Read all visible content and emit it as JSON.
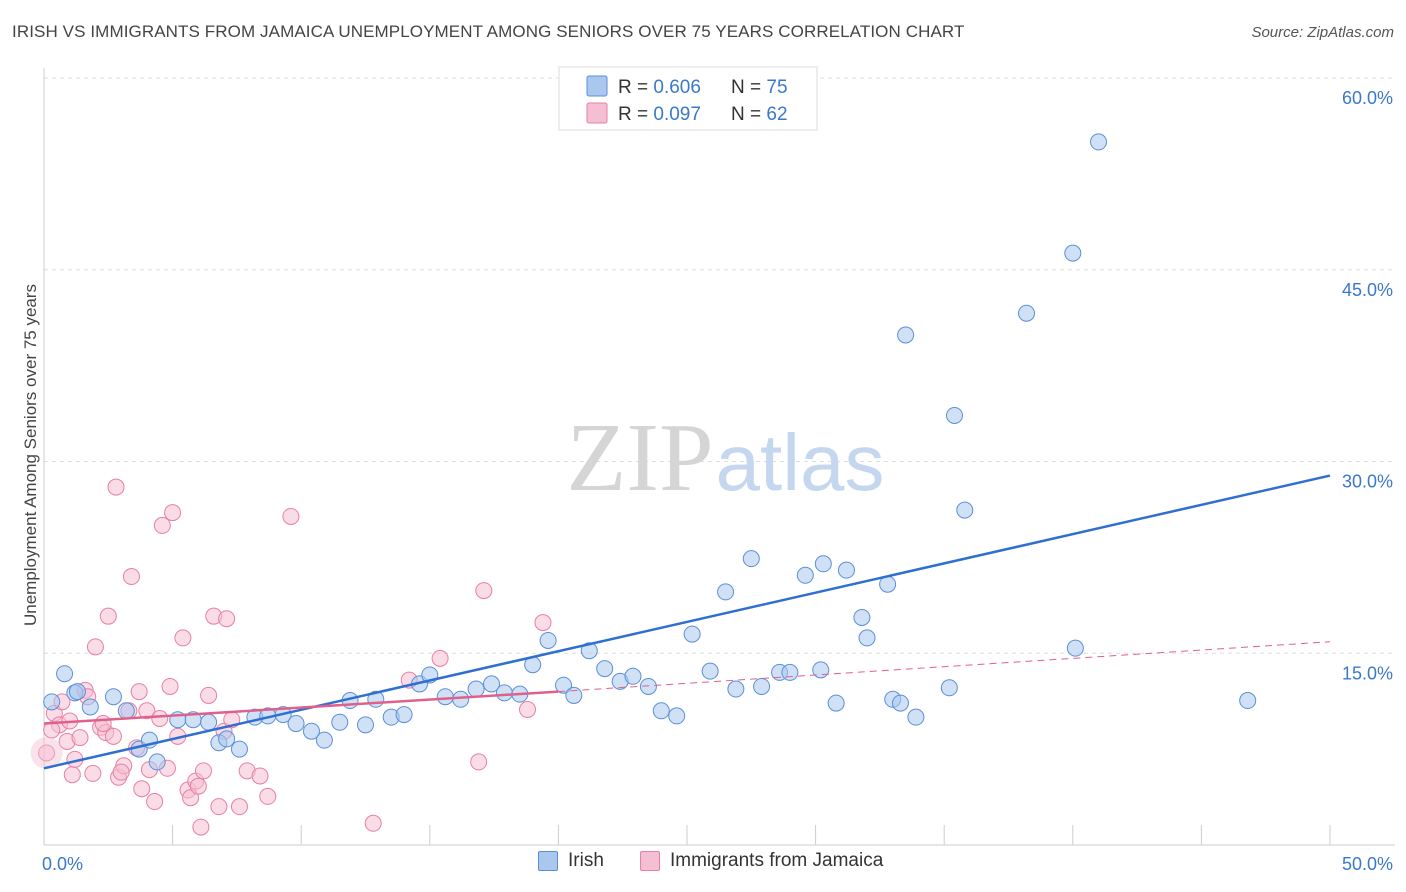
{
  "header": {
    "title": "IRISH VS IMMIGRANTS FROM JAMAICA UNEMPLOYMENT AMONG SENIORS OVER 75 YEARS CORRELATION CHART",
    "source": "Source: ZipAtlas.com"
  },
  "watermark": {
    "zip": "ZIP",
    "atlas": "atlas"
  },
  "colors": {
    "irish": "#5b8fd8",
    "irish_fill": "#aac8ee",
    "irish_line": "#2e6fd0",
    "jamaica": "#e97fa3",
    "jamaica_fill": "#f4bfd2",
    "jamaica_line": "#e0608c",
    "axis_text": "#3a78cc",
    "grid": "#dddddd"
  },
  "legend": {
    "irish": {
      "r_label": "R = ",
      "r_value": "0.606",
      "n_label": "N = ",
      "n_value": "75"
    },
    "jamaica": {
      "r_label": "R = ",
      "r_value": "0.097",
      "n_label": "N = ",
      "n_value": "62"
    }
  },
  "chart_data": {
    "type": "scatter",
    "title": "IRISH VS IMMIGRANTS FROM JAMAICA UNEMPLOYMENT AMONG SENIORS OVER 75 YEARS CORRELATION CHART",
    "xlabel": "",
    "ylabel": "Unemployment Among Seniors over 75 years",
    "xlim": [
      0,
      50
    ],
    "ylim": [
      0,
      60
    ],
    "x_tick_labels": [
      "0.0%",
      "50.0%"
    ],
    "y_ticks": [
      15,
      30,
      45,
      60
    ],
    "y_tick_labels": [
      "15.0%",
      "30.0%",
      "45.0%",
      "60.0%"
    ],
    "grid": true,
    "series": [
      {
        "name": "Irish",
        "points": [
          [
            0.3,
            11.2
          ],
          [
            0.8,
            13.4
          ],
          [
            1.2,
            11.9
          ],
          [
            1.8,
            10.8
          ],
          [
            2.7,
            11.6
          ],
          [
            3.2,
            10.5
          ],
          [
            3.7,
            7.5
          ],
          [
            4.4,
            6.5
          ],
          [
            5.2,
            9.8
          ],
          [
            5.8,
            9.8
          ],
          [
            6.4,
            9.6
          ],
          [
            6.8,
            8.0
          ],
          [
            7.1,
            8.3
          ],
          [
            7.6,
            7.5
          ],
          [
            8.2,
            10.0
          ],
          [
            8.7,
            10.1
          ],
          [
            9.3,
            10.2
          ],
          [
            9.8,
            9.5
          ],
          [
            10.4,
            8.9
          ],
          [
            10.9,
            8.2
          ],
          [
            11.5,
            9.6
          ],
          [
            11.9,
            11.3
          ],
          [
            12.5,
            9.4
          ],
          [
            12.9,
            11.4
          ],
          [
            13.5,
            10.0
          ],
          [
            14.0,
            10.2
          ],
          [
            14.6,
            12.6
          ],
          [
            15.0,
            13.3
          ],
          [
            15.6,
            11.6
          ],
          [
            16.2,
            11.4
          ],
          [
            16.8,
            12.2
          ],
          [
            17.4,
            12.6
          ],
          [
            17.9,
            11.9
          ],
          [
            18.5,
            11.8
          ],
          [
            19.0,
            14.1
          ],
          [
            19.6,
            16.0
          ],
          [
            20.2,
            12.5
          ],
          [
            20.6,
            11.7
          ],
          [
            21.2,
            15.2
          ],
          [
            21.8,
            13.8
          ],
          [
            22.4,
            12.8
          ],
          [
            22.9,
            13.2
          ],
          [
            23.5,
            12.4
          ],
          [
            24.0,
            10.5
          ],
          [
            24.6,
            10.1
          ],
          [
            25.2,
            16.5
          ],
          [
            25.9,
            13.6
          ],
          [
            26.5,
            19.8
          ],
          [
            26.9,
            12.2
          ],
          [
            27.5,
            22.4
          ],
          [
            27.9,
            12.4
          ],
          [
            28.6,
            13.5
          ],
          [
            29.0,
            13.5
          ],
          [
            29.6,
            21.1
          ],
          [
            30.2,
            13.7
          ],
          [
            30.3,
            22.0
          ],
          [
            30.8,
            11.1
          ],
          [
            31.2,
            21.5
          ],
          [
            31.8,
            17.8
          ],
          [
            32.0,
            16.2
          ],
          [
            32.8,
            20.4
          ],
          [
            33.0,
            11.4
          ],
          [
            33.3,
            11.1
          ],
          [
            33.5,
            39.9
          ],
          [
            33.9,
            10.0
          ],
          [
            35.2,
            12.3
          ],
          [
            35.4,
            33.6
          ],
          [
            35.8,
            26.2
          ],
          [
            38.2,
            41.6
          ],
          [
            40.0,
            46.3
          ],
          [
            40.1,
            15.4
          ],
          [
            41.0,
            55.0
          ],
          [
            46.8,
            11.3
          ],
          [
            4.1,
            8.2
          ],
          [
            1.3,
            12.0
          ]
        ]
      },
      {
        "name": "Immigrants from Jamaica",
        "points": [
          [
            0.1,
            7.2
          ],
          [
            0.4,
            10.3
          ],
          [
            0.6,
            9.4
          ],
          [
            0.7,
            11.2
          ],
          [
            0.9,
            8.1
          ],
          [
            1.1,
            5.5
          ],
          [
            1.2,
            6.7
          ],
          [
            1.4,
            8.4
          ],
          [
            1.6,
            12.1
          ],
          [
            1.7,
            11.6
          ],
          [
            1.9,
            5.6
          ],
          [
            2.0,
            15.5
          ],
          [
            2.2,
            9.2
          ],
          [
            2.4,
            8.8
          ],
          [
            2.5,
            17.9
          ],
          [
            2.7,
            8.5
          ],
          [
            2.8,
            28.0
          ],
          [
            2.9,
            5.3
          ],
          [
            3.1,
            6.2
          ],
          [
            3.3,
            10.5
          ],
          [
            3.4,
            21.0
          ],
          [
            3.6,
            7.6
          ],
          [
            3.7,
            12.0
          ],
          [
            3.8,
            4.4
          ],
          [
            4.0,
            10.5
          ],
          [
            4.1,
            5.9
          ],
          [
            4.3,
            3.4
          ],
          [
            4.5,
            9.9
          ],
          [
            4.6,
            25.0
          ],
          [
            4.8,
            6.0
          ],
          [
            4.9,
            12.4
          ],
          [
            5.0,
            26.0
          ],
          [
            5.2,
            8.5
          ],
          [
            5.4,
            16.2
          ],
          [
            5.6,
            4.3
          ],
          [
            5.7,
            3.7
          ],
          [
            5.9,
            5.0
          ],
          [
            6.0,
            4.6
          ],
          [
            6.1,
            1.4
          ],
          [
            6.2,
            5.8
          ],
          [
            6.4,
            11.7
          ],
          [
            6.6,
            17.9
          ],
          [
            6.8,
            3.0
          ],
          [
            7.0,
            8.9
          ],
          [
            7.1,
            17.7
          ],
          [
            7.3,
            9.8
          ],
          [
            7.6,
            3.0
          ],
          [
            7.9,
            5.8
          ],
          [
            8.4,
            5.4
          ],
          [
            8.7,
            3.8
          ],
          [
            9.6,
            25.7
          ],
          [
            12.8,
            1.7
          ],
          [
            14.2,
            12.9
          ],
          [
            15.4,
            14.6
          ],
          [
            16.9,
            6.5
          ],
          [
            17.1,
            19.9
          ],
          [
            18.8,
            10.6
          ],
          [
            19.4,
            17.4
          ],
          [
            0.3,
            9.0
          ],
          [
            1.0,
            9.7
          ],
          [
            2.3,
            9.5
          ],
          [
            3.0,
            5.7
          ]
        ]
      }
    ],
    "trendlines": [
      {
        "series": "Irish",
        "x": [
          0,
          50
        ],
        "y": [
          6.0,
          28.9
        ],
        "style": "solid"
      },
      {
        "series": "Immigrants from Jamaica",
        "x": [
          0,
          20
        ],
        "y": [
          9.5,
          12.0
        ],
        "style": "solid"
      },
      {
        "series": "Immigrants from Jamaica",
        "x": [
          20,
          50
        ],
        "y": [
          12.0,
          15.9
        ],
        "style": "dashed"
      }
    ],
    "legend_placement": "top-center"
  }
}
